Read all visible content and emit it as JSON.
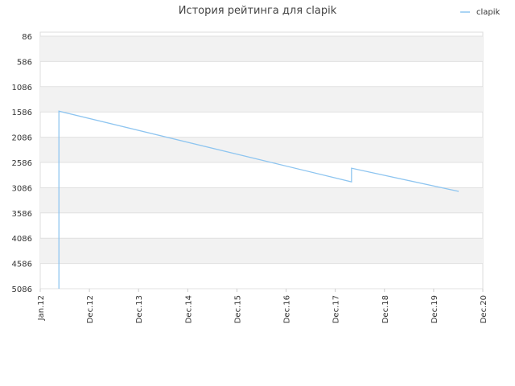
{
  "chart_data": {
    "type": "line",
    "title": "История рейтинга для clapik",
    "xlim": [
      0,
      9
    ],
    "xticks": [
      {
        "value": 0,
        "label": "Jan.12"
      },
      {
        "value": 1,
        "label": "Dec.12"
      },
      {
        "value": 2,
        "label": "Dec.13"
      },
      {
        "value": 3,
        "label": "Dec.14"
      },
      {
        "value": 4,
        "label": "Dec.15"
      },
      {
        "value": 5,
        "label": "Dec.16"
      },
      {
        "value": 6,
        "label": "Dec.17"
      },
      {
        "value": 7,
        "label": "Dec.18"
      },
      {
        "value": 8,
        "label": "Dec.19"
      },
      {
        "value": 9,
        "label": "Dec.20"
      }
    ],
    "ylim": [
      86,
      5086
    ],
    "y_inverted": true,
    "yticks": [
      86,
      586,
      1086,
      1586,
      2086,
      2586,
      3086,
      3586,
      4086,
      4586,
      5086
    ],
    "grid": true,
    "legend": "top-right",
    "x": [
      0.38,
      0.38,
      6.33,
      6.33,
      8.51
    ],
    "series": [
      {
        "name": "clapik",
        "color": "#8ec5f0",
        "values": [
          5086,
          1570,
          2970,
          2700,
          3160
        ]
      }
    ]
  }
}
